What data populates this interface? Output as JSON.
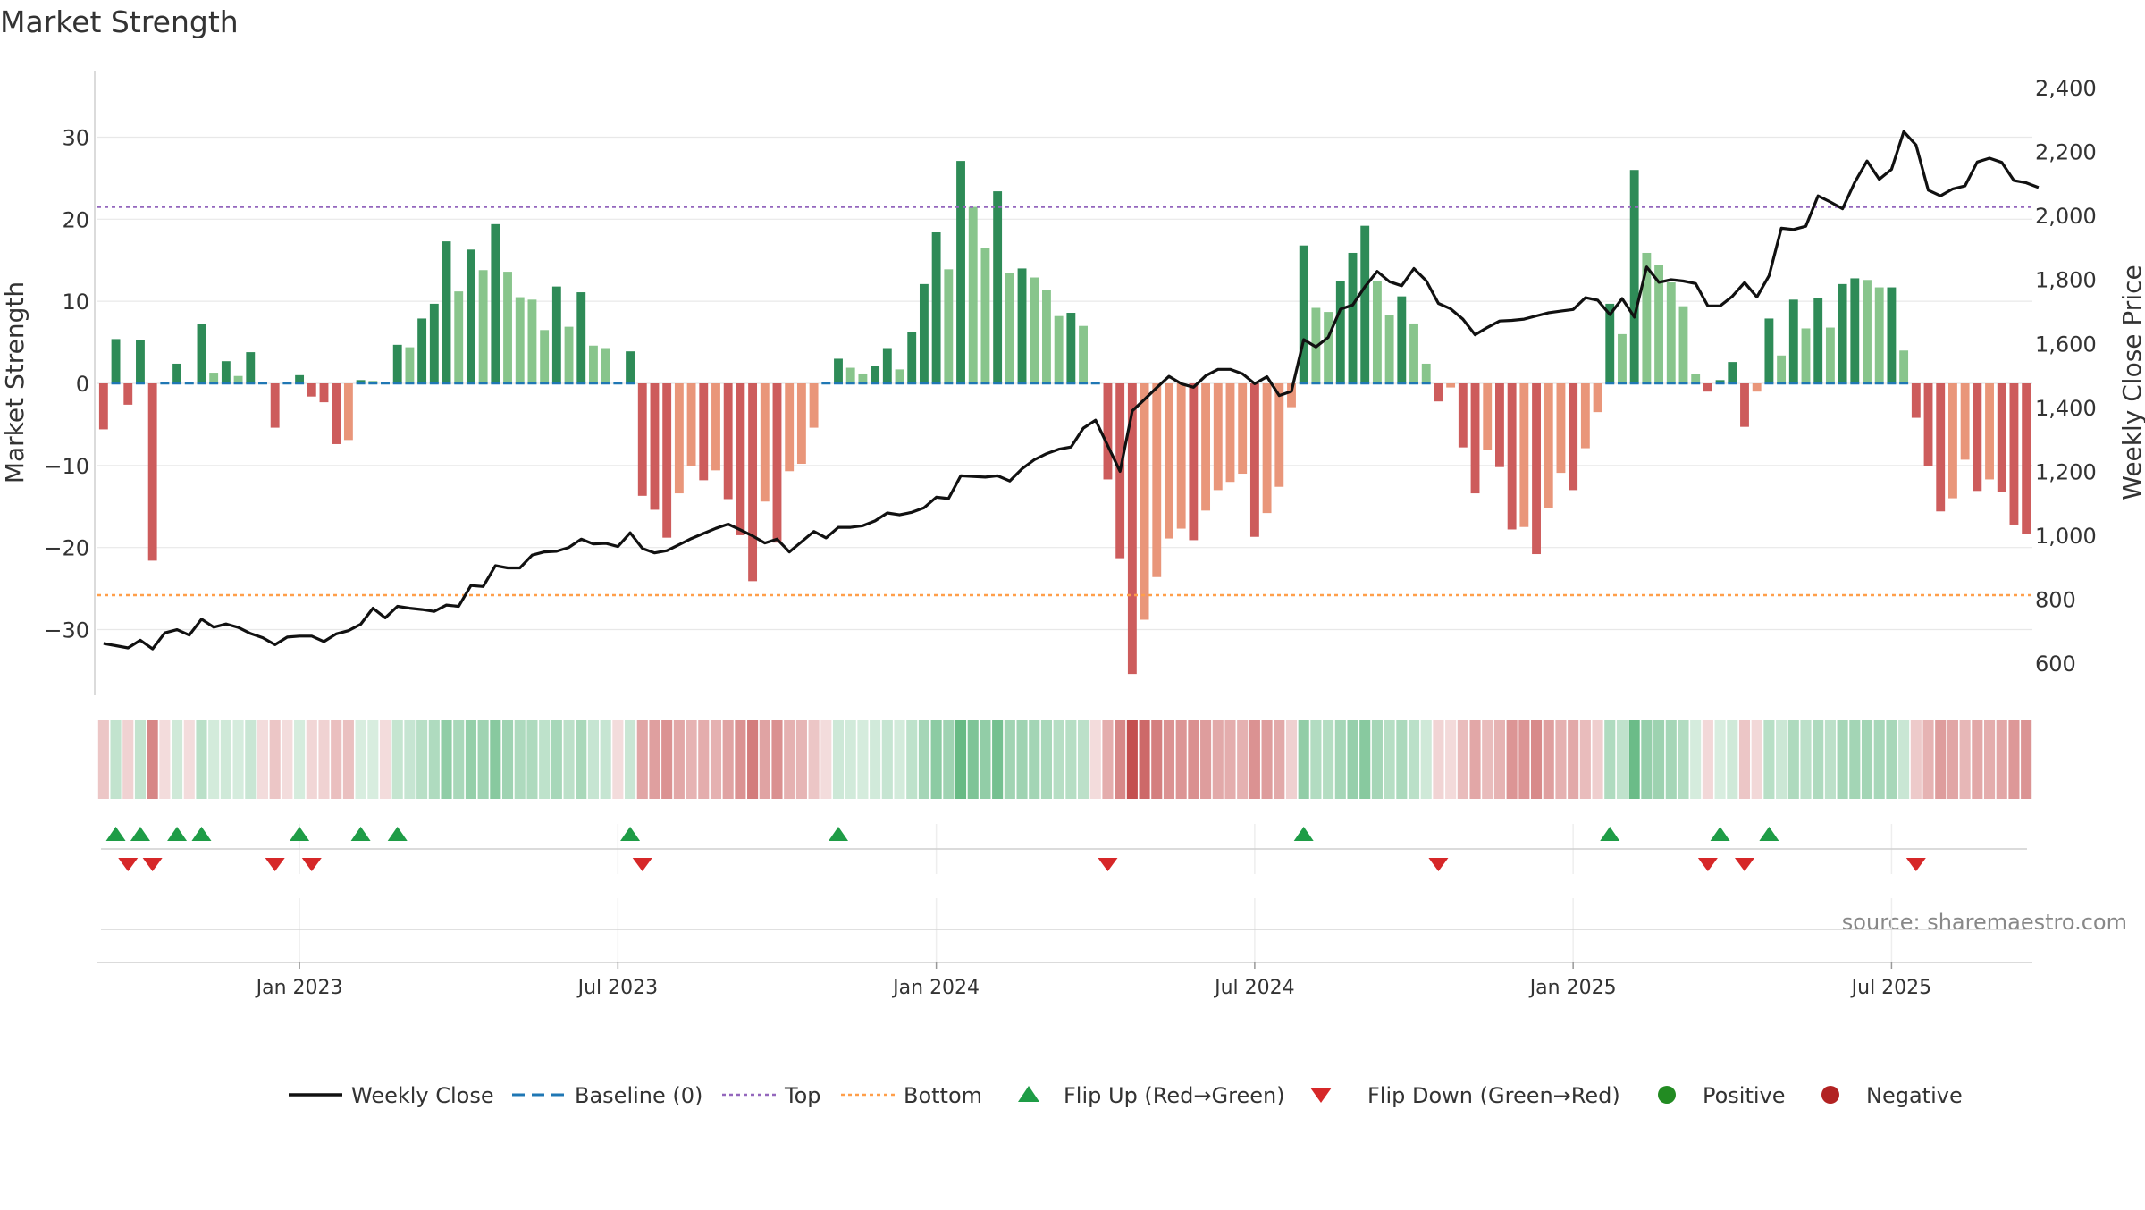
{
  "title": "Market Strength",
  "source_note": "source: sharemaestro.com",
  "colors": {
    "pos_dark": "#2e8b57",
    "pos_light": "#88c58c",
    "neg_dark": "#cd5c5c",
    "neg_light": "#e9967a",
    "close_line": "#111111",
    "baseline": "#1f77b4",
    "top_line": "#9467bd",
    "bottom_line": "#ff9f4a",
    "flip_up": "#1e9c46",
    "flip_down": "#d62728",
    "positive_dot": "#228b22",
    "negative_dot": "#b22222",
    "grid": "#e8e8e8",
    "text": "#333333",
    "source_text": "#888888"
  },
  "chart_data": {
    "type": "bar",
    "ylabel_left": "Market Strength",
    "ylabel_right": "Weekly Close Price",
    "ylim_left": [
      -38,
      38
    ],
    "ylim_right": [
      500,
      2450
    ],
    "yticks_left": [
      30,
      20,
      10,
      0,
      -10,
      -20,
      -30
    ],
    "ytick_labels_left": [
      "30",
      "20",
      "10",
      "0",
      "−10",
      "−20",
      "−30"
    ],
    "yticks_right": [
      2400,
      2200,
      2000,
      1800,
      1600,
      1400,
      1200,
      1000,
      800,
      600
    ],
    "ytick_labels_right": [
      "2,400",
      "2,200",
      "2,000",
      "1,800",
      "1,600",
      "1,400",
      "1,200",
      "1,000",
      "800",
      "600"
    ],
    "x_ticks": [
      {
        "week": 16,
        "label": "Jan 2023"
      },
      {
        "week": 42,
        "label": "Jul 2023"
      },
      {
        "week": 68,
        "label": "Jan 2024"
      },
      {
        "week": 94,
        "label": "Jul 2024"
      },
      {
        "week": 120,
        "label": "Jan 2025"
      },
      {
        "week": 146,
        "label": "Jul 2025"
      }
    ],
    "top_level": 21.5,
    "bottom_level": -25.8,
    "strength": [
      -5.6,
      5.4,
      -2.6,
      5.3,
      -21.6,
      0,
      2.4,
      0,
      7.2,
      1.3,
      2.7,
      0.9,
      3.8,
      0,
      -5.4,
      0,
      1,
      -1.6,
      -2.3,
      -7.4,
      -6.9,
      0.4,
      0.3,
      0,
      4.7,
      4.4,
      7.9,
      9.7,
      17.3,
      11.2,
      16.3,
      13.8,
      19.4,
      13.6,
      10.5,
      10.2,
      6.5,
      11.8,
      6.9,
      11.1,
      4.6,
      4.3,
      0,
      3.9,
      -13.7,
      -15.4,
      -18.8,
      -13.4,
      -10.1,
      -11.8,
      -10.6,
      -14.1,
      -18.5,
      -24.1,
      -14.4,
      -19.4,
      -10.7,
      -9.8,
      -5.4,
      0,
      3,
      1.9,
      1.2,
      2.1,
      4.3,
      1.7,
      6.3,
      12.1,
      18.4,
      13.9,
      27.1,
      21.5,
      16.5,
      23.4,
      13.4,
      14,
      12.9,
      11.4,
      8.2,
      8.6,
      7,
      0,
      -11.7,
      -21.3,
      -35.4,
      -28.8,
      -23.6,
      -18.9,
      -17.7,
      -19.1,
      -15.5,
      -13,
      -12,
      -11,
      -18.7,
      -15.8,
      -12.6,
      -2.9,
      16.8,
      9.2,
      8.7,
      12.5,
      15.9,
      19.2,
      12.5,
      8.3,
      10.6,
      7.3,
      2.4,
      -2.2,
      -0.5,
      -7.8,
      -13.4,
      -8.1,
      -10.2,
      -17.8,
      -17.5,
      -20.8,
      -15.2,
      -10.9,
      -13,
      -7.9,
      -3.5,
      9.7,
      6,
      26,
      15.9,
      14.4,
      12.3,
      9.4,
      1.1,
      -1,
      0.4,
      2.6,
      -5.3,
      -1,
      7.9,
      3.4,
      10.2,
      6.7,
      10.4,
      6.8,
      12.1,
      12.8,
      12.6,
      11.7,
      11.7,
      4,
      -4.2,
      -10.1,
      -15.6,
      -14,
      -9.3,
      -13.1,
      -11.7,
      -13.2,
      -17.2,
      -18.3
    ],
    "weekly_close": [
      662,
      655,
      648,
      672,
      645,
      695,
      705,
      688,
      738,
      713,
      723,
      712,
      693,
      680,
      658,
      682,
      685,
      685,
      668,
      692,
      702,
      722,
      772,
      742,
      778,
      772,
      768,
      762,
      782,
      778,
      843,
      840,
      905,
      898,
      898,
      938,
      948,
      950,
      962,
      988,
      973,
      975,
      965,
      1008,
      959,
      945,
      952,
      971,
      990,
      1006,
      1022,
      1035,
      1017,
      998,
      976,
      988,
      948,
      980,
      1012,
      992,
      1025,
      1025,
      1030,
      1045,
      1070,
      1064,
      1072,
      1086,
      1119,
      1115,
      1186,
      1184,
      1182,
      1186,
      1170,
      1208,
      1236,
      1255,
      1269,
      1276,
      1335,
      1360,
      1280,
      1200,
      1389,
      1425,
      1462,
      1497,
      1474,
      1463,
      1499,
      1519,
      1519,
      1505,
      1474,
      1496,
      1437,
      1450,
      1612,
      1589,
      1619,
      1707,
      1720,
      1777,
      1825,
      1793,
      1780,
      1834,
      1796,
      1725,
      1708,
      1676,
      1627,
      1650,
      1670,
      1672,
      1676,
      1686,
      1696,
      1701,
      1706,
      1743,
      1735,
      1690,
      1740,
      1682,
      1839,
      1791,
      1799,
      1795,
      1787,
      1717,
      1717,
      1747,
      1790,
      1745,
      1812,
      1960,
      1956,
      1966,
      2061,
      2042,
      2021,
      2104,
      2170,
      2113,
      2144,
      2262,
      2220,
      2079,
      2061,
      2083,
      2092,
      2167,
      2179,
      2166,
      2109,
      2102,
      2087
    ]
  },
  "legend": {
    "weekly_close": "Weekly Close",
    "baseline": "Baseline (0)",
    "top": "Top",
    "bottom": "Bottom",
    "flip_up": "Flip Up (Red→Green)",
    "flip_down": "Flip Down (Green→Red)",
    "positive": "Positive",
    "negative": "Negative"
  }
}
